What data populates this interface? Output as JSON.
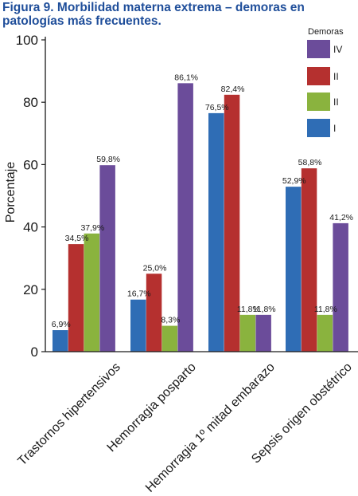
{
  "chart_data": {
    "type": "bar",
    "title": "Figura 9. Morbilidad materna extrema – demoras en patologías más frecuentes.",
    "ylabel": "Porcentaje",
    "xlabel": "",
    "ylim": [
      0,
      100
    ],
    "yticks": [
      0,
      20,
      40,
      60,
      80,
      100
    ],
    "grid": false,
    "legend_title": "Demoras",
    "legend_position": "top-right",
    "categories": [
      "Trastornos hipertensivos",
      "Hemorragia posparto",
      "Hemorragia 1º mitad embarazo",
      "Sepsis origen obstétrico"
    ],
    "bar_order": [
      "I",
      "II",
      "III",
      "IV"
    ],
    "legend_order": [
      "IV",
      "III",
      "II",
      "I"
    ],
    "series": {
      "I": {
        "legend_label": "I",
        "color": "#2f6db5",
        "values": [
          6.9,
          16.7,
          76.5,
          52.9
        ],
        "labels": [
          "6,9%",
          "16,7%",
          "76,5%",
          "52,9%"
        ]
      },
      "II": {
        "legend_label": "II",
        "color": "#8ab33e",
        "values": [
          37.9,
          8.3,
          11.8,
          11.8
        ],
        "labels": [
          "37,9%",
          "8,3%",
          "11,8%",
          "11,8%"
        ]
      },
      "III": {
        "legend_label": "II",
        "color": "#b5302f",
        "values": [
          34.5,
          25.0,
          82.4,
          58.8
        ],
        "labels": [
          "34,5%",
          "25,0%",
          "82,4%",
          "58,8%"
        ]
      },
      "IV": {
        "legend_label": "IV",
        "color": "#6b4c9a",
        "values": [
          59.8,
          86.1,
          11.8,
          41.2
        ],
        "labels": [
          "59,8%",
          "86,1%",
          "11,8%",
          "41,2%"
        ]
      }
    },
    "bar_sequence": [
      [
        "I",
        "III",
        "II",
        "IV"
      ],
      [
        "I",
        "III",
        "II",
        "IV"
      ],
      [
        "I",
        "III",
        "II",
        "IV"
      ],
      [
        "I",
        "III",
        "II",
        "IV"
      ]
    ]
  }
}
